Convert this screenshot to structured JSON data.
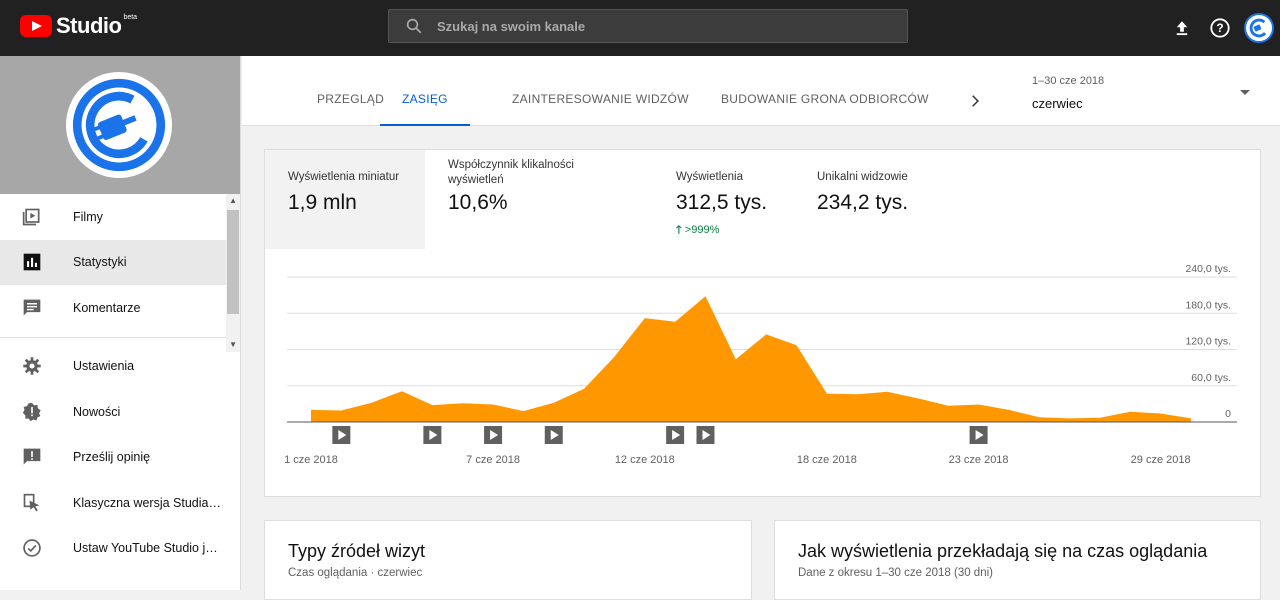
{
  "app": {
    "logo_text": "Studio",
    "logo_badge": "beta"
  },
  "search": {
    "placeholder": "Szukaj na swoim kanale"
  },
  "sidebar": {
    "items": [
      {
        "label": "Filmy",
        "icon": "video-icon"
      },
      {
        "label": "Statystyki",
        "icon": "analytics-icon"
      },
      {
        "label": "Komentarze",
        "icon": "comments-icon"
      },
      {
        "label": "Ustawienia",
        "icon": "settings-icon"
      },
      {
        "label": "Nowości",
        "icon": "news-icon"
      },
      {
        "label": "Prześlij opinię",
        "icon": "feedback-icon"
      },
      {
        "label": "Klasyczna wersja Studia…",
        "icon": "classic-studio-icon"
      },
      {
        "label": "Ustaw YouTube Studio j…",
        "icon": "check-circle-icon"
      }
    ]
  },
  "tabs": [
    {
      "label": "PRZEGLĄD"
    },
    {
      "label": "ZASIĘG"
    },
    {
      "label": "ZAINTERESOWANIE WIDZÓW"
    },
    {
      "label": "BUDOWANIE GRONA ODBIORCÓW"
    }
  ],
  "date": {
    "range": "1–30 cze 2018",
    "month": "czerwiec"
  },
  "metrics": [
    {
      "label": "Wyświetlenia miniatur",
      "value": "1,9 mln"
    },
    {
      "label": "Współczynnik klikalności wyświetleń",
      "value": "10,6%"
    },
    {
      "label": "Wyświetlenia",
      "value": "312,5 tys.",
      "change": ">999%"
    },
    {
      "label": "Unikalni widzowie",
      "value": "234,2 tys."
    }
  ],
  "chart_data": {
    "type": "area",
    "x": [
      1,
      2,
      3,
      4,
      5,
      6,
      7,
      8,
      9,
      10,
      11,
      12,
      13,
      14,
      15,
      16,
      17,
      18,
      19,
      20,
      21,
      22,
      23,
      24,
      25,
      26,
      27,
      28,
      29,
      30
    ],
    "values": [
      20000,
      19000,
      32000,
      51000,
      28000,
      31000,
      29000,
      18000,
      32000,
      55000,
      108000,
      172000,
      166000,
      208000,
      104000,
      145000,
      127000,
      47000,
      46000,
      50000,
      39000,
      27000,
      29000,
      20000,
      8000,
      6000,
      7000,
      17000,
      14000,
      6000
    ],
    "ylim": [
      0,
      240000
    ],
    "ytick_labels": [
      "0",
      "60,0 tys.",
      "120,0 tys.",
      "180,0 tys.",
      "240,0 tys."
    ],
    "xtick_labels": [
      {
        "day": 1,
        "label": "1 cze 2018"
      },
      {
        "day": 7,
        "label": "7 cze 2018"
      },
      {
        "day": 12,
        "label": "12 cze 2018"
      },
      {
        "day": 18,
        "label": "18 cze 2018"
      },
      {
        "day": 23,
        "label": "23 cze 2018"
      },
      {
        "day": 29,
        "label": "29 cze 2018"
      }
    ],
    "video_markers": [
      2,
      5,
      7,
      9,
      13,
      14,
      23
    ],
    "color": "#ff9800",
    "grid": true
  },
  "cards": [
    {
      "title": "Typy źródeł wizyt",
      "subtitle": "Czas oglądania · czerwiec"
    },
    {
      "title": "Jak wyświetlenia przekładają się na czas oglądania",
      "subtitle": "Dane z okresu 1–30 cze 2018 (30 dni)"
    }
  ]
}
